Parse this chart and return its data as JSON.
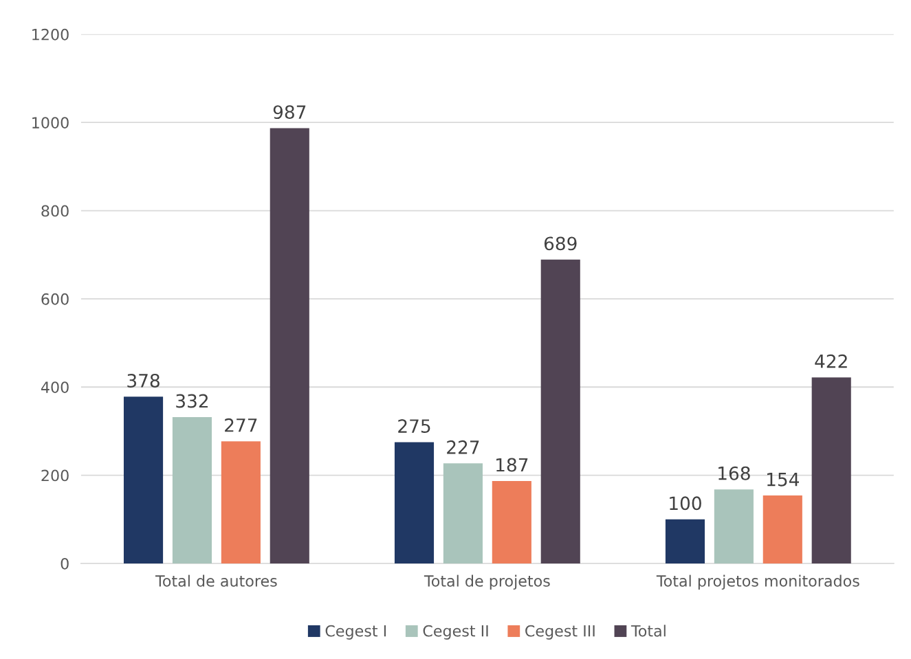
{
  "chart_data": {
    "type": "bar",
    "categories": [
      "Total de autores",
      "Total de projetos",
      "Total projetos monitorados"
    ],
    "series": [
      {
        "name": "Cegest I",
        "color": "#203864",
        "values": [
          378,
          275,
          100
        ]
      },
      {
        "name": "Cegest II",
        "color": "#a9c4bb",
        "values": [
          332,
          227,
          168
        ]
      },
      {
        "name": "Cegest III",
        "color": "#ed7d5a",
        "values": [
          277,
          187,
          154
        ]
      },
      {
        "name": "Total",
        "color": "#514454",
        "values": [
          987,
          689,
          422
        ]
      }
    ],
    "ylim": [
      0,
      1200
    ],
    "yticks": [
      0,
      200,
      400,
      600,
      800,
      1000,
      1200
    ],
    "grid": "y",
    "legend": "bottom",
    "data_labels": true
  }
}
